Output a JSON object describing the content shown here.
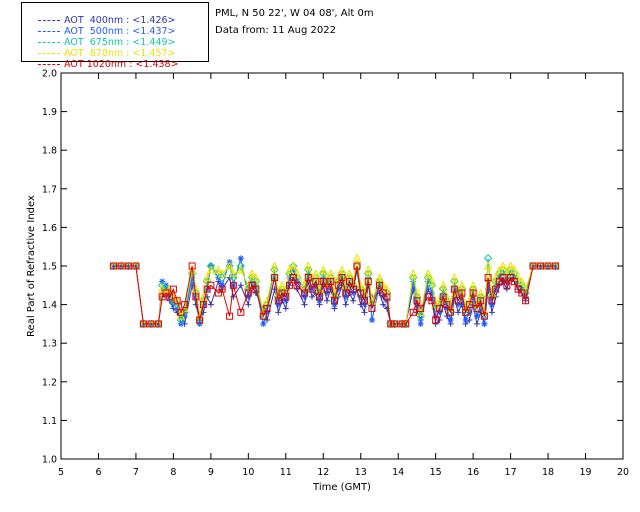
{
  "header": {
    "location": "PML, N 50 22', W 04 08', Alt 0m",
    "date": "Data from: 11 Aug 2022"
  },
  "legend": [
    {
      "label": "AOT  400nm : <1.426>",
      "color": "#3333aa"
    },
    {
      "label": "AOT  500nm : <1.437>",
      "color": "#1e5cff"
    },
    {
      "label": "AOT  675nm : <1.449>",
      "color": "#14c8a0"
    },
    {
      "label": "AOT  870nm : <1.457>",
      "color": "#f0e000"
    },
    {
      "label": "AOT 1020nm : <1.438>",
      "color": "#e00000"
    }
  ],
  "chart_data": {
    "type": "line",
    "xlabel": "Time (GMT)",
    "ylabel": "Real Part of Refractive Index",
    "xlim": [
      5,
      20
    ],
    "ylim": [
      1.0,
      2.0
    ],
    "xticks": [
      "5",
      "6",
      "7",
      "8",
      "9",
      "10",
      "11",
      "12",
      "13",
      "14",
      "15",
      "16",
      "17",
      "18",
      "19",
      "20"
    ],
    "yticks": [
      "1.0",
      "1.1",
      "1.2",
      "1.3",
      "1.4",
      "1.5",
      "1.6",
      "1.7",
      "1.8",
      "1.9",
      "2.0"
    ],
    "series": [
      {
        "name": "AOT  400nm",
        "color": "#3333aa",
        "marker": "plus",
        "x": [
          6.4,
          6.6,
          6.8,
          7.0,
          7.2,
          7.4,
          7.6,
          7.7,
          7.8,
          7.9,
          8.0,
          8.1,
          8.2,
          8.3,
          8.5,
          8.6,
          8.7,
          8.8,
          8.9,
          9.0,
          9.2,
          9.3,
          9.5,
          9.6,
          9.8,
          10.0,
          10.1,
          10.2,
          10.4,
          10.5,
          10.7,
          10.8,
          10.9,
          11.0,
          11.1,
          11.2,
          11.3,
          11.5,
          11.6,
          11.7,
          11.8,
          11.9,
          12.0,
          12.1,
          12.2,
          12.3,
          12.4,
          12.5,
          12.6,
          12.7,
          12.8,
          12.9,
          13.0,
          13.1,
          13.2,
          13.3,
          13.5,
          13.6,
          13.7,
          13.8,
          13.9,
          14.1,
          14.2,
          14.4,
          14.5,
          14.6,
          14.8,
          14.9,
          15.0,
          15.1,
          15.2,
          15.3,
          15.4,
          15.5,
          15.6,
          15.7,
          15.8,
          15.9,
          16.0,
          16.1,
          16.2,
          16.3,
          16.4,
          16.5,
          16.6,
          16.7,
          16.8,
          16.9,
          17.0,
          17.1,
          17.2,
          17.3,
          17.4,
          17.6,
          17.8,
          18.0,
          18.2
        ],
        "y": [
          1.5,
          1.5,
          1.5,
          1.5,
          1.35,
          1.35,
          1.35,
          1.42,
          1.44,
          1.41,
          1.39,
          1.38,
          1.37,
          1.35,
          1.45,
          1.4,
          1.36,
          1.38,
          1.42,
          1.4,
          1.46,
          1.44,
          1.47,
          1.42,
          1.45,
          1.4,
          1.45,
          1.43,
          1.39,
          1.36,
          1.44,
          1.38,
          1.41,
          1.39,
          1.45,
          1.47,
          1.44,
          1.4,
          1.46,
          1.42,
          1.43,
          1.4,
          1.45,
          1.41,
          1.44,
          1.39,
          1.42,
          1.45,
          1.4,
          1.43,
          1.41,
          1.44,
          1.4,
          1.38,
          1.45,
          1.42,
          1.43,
          1.4,
          1.39,
          1.35,
          1.35,
          1.35,
          1.35,
          1.44,
          1.38,
          1.36,
          1.44,
          1.41,
          1.35,
          1.36,
          1.4,
          1.37,
          1.35,
          1.42,
          1.38,
          1.4,
          1.35,
          1.36,
          1.4,
          1.35,
          1.38,
          1.35,
          1.44,
          1.38,
          1.42,
          1.45,
          1.46,
          1.44,
          1.47,
          1.46,
          1.44,
          1.43,
          1.41,
          1.5,
          1.5,
          1.5,
          1.5
        ]
      },
      {
        "name": "AOT  500nm",
        "color": "#1e5cff",
        "marker": "star",
        "x": [
          6.4,
          6.6,
          6.8,
          7.0,
          7.2,
          7.4,
          7.6,
          7.7,
          7.8,
          7.9,
          8.0,
          8.1,
          8.2,
          8.3,
          8.5,
          8.6,
          8.7,
          8.8,
          8.9,
          9.0,
          9.2,
          9.3,
          9.5,
          9.6,
          9.8,
          10.0,
          10.1,
          10.2,
          10.4,
          10.5,
          10.7,
          10.8,
          10.9,
          11.0,
          11.1,
          11.2,
          11.3,
          11.5,
          11.6,
          11.7,
          11.8,
          11.9,
          12.0,
          12.1,
          12.2,
          12.3,
          12.4,
          12.5,
          12.6,
          12.7,
          12.8,
          12.9,
          13.0,
          13.1,
          13.2,
          13.3,
          13.5,
          13.6,
          13.7,
          13.8,
          13.9,
          14.1,
          14.2,
          14.4,
          14.5,
          14.6,
          14.8,
          14.9,
          15.0,
          15.1,
          15.2,
          15.3,
          15.4,
          15.5,
          15.6,
          15.7,
          15.8,
          15.9,
          16.0,
          16.1,
          16.2,
          16.3,
          16.4,
          16.5,
          16.6,
          16.7,
          16.8,
          16.9,
          17.0,
          17.1,
          17.2,
          17.3,
          17.4,
          17.6,
          17.8,
          18.0,
          18.2
        ],
        "y": [
          1.5,
          1.5,
          1.5,
          1.5,
          1.35,
          1.35,
          1.35,
          1.46,
          1.45,
          1.42,
          1.4,
          1.39,
          1.35,
          1.37,
          1.47,
          1.42,
          1.35,
          1.4,
          1.44,
          1.5,
          1.47,
          1.45,
          1.51,
          1.45,
          1.52,
          1.42,
          1.46,
          1.45,
          1.35,
          1.38,
          1.47,
          1.4,
          1.43,
          1.41,
          1.47,
          1.49,
          1.46,
          1.42,
          1.48,
          1.44,
          1.45,
          1.41,
          1.47,
          1.43,
          1.46,
          1.4,
          1.44,
          1.47,
          1.42,
          1.45,
          1.43,
          1.49,
          1.42,
          1.4,
          1.47,
          1.36,
          1.45,
          1.42,
          1.41,
          1.35,
          1.35,
          1.35,
          1.35,
          1.46,
          1.4,
          1.35,
          1.46,
          1.43,
          1.37,
          1.38,
          1.42,
          1.39,
          1.36,
          1.44,
          1.4,
          1.42,
          1.36,
          1.38,
          1.42,
          1.37,
          1.4,
          1.35,
          1.46,
          1.4,
          1.44,
          1.47,
          1.48,
          1.46,
          1.48,
          1.47,
          1.45,
          1.44,
          1.42,
          1.5,
          1.5,
          1.5,
          1.5
        ]
      },
      {
        "name": "AOT  675nm",
        "color": "#14c8a0",
        "marker": "diamond",
        "x": [
          6.4,
          6.6,
          6.8,
          7.0,
          7.2,
          7.4,
          7.6,
          7.7,
          7.8,
          7.9,
          8.0,
          8.1,
          8.2,
          8.3,
          8.5,
          8.6,
          8.7,
          8.8,
          8.9,
          9.0,
          9.2,
          9.3,
          9.5,
          9.6,
          9.8,
          10.0,
          10.1,
          10.2,
          10.4,
          10.5,
          10.7,
          10.8,
          10.9,
          11.0,
          11.1,
          11.2,
          11.3,
          11.5,
          11.6,
          11.7,
          11.8,
          11.9,
          12.0,
          12.1,
          12.2,
          12.3,
          12.4,
          12.5,
          12.6,
          12.7,
          12.8,
          12.9,
          13.0,
          13.1,
          13.2,
          13.3,
          13.5,
          13.6,
          13.7,
          13.8,
          13.9,
          14.1,
          14.2,
          14.4,
          14.5,
          14.6,
          14.8,
          14.9,
          15.0,
          15.1,
          15.2,
          15.3,
          15.4,
          15.5,
          15.6,
          15.7,
          15.8,
          15.9,
          16.0,
          16.1,
          16.2,
          16.3,
          16.4,
          16.5,
          16.6,
          16.7,
          16.8,
          16.9,
          17.0,
          17.1,
          17.2,
          17.3,
          17.4,
          17.6,
          17.8,
          18.0,
          18.2
        ],
        "y": [
          1.5,
          1.5,
          1.5,
          1.5,
          1.35,
          1.35,
          1.35,
          1.45,
          1.44,
          1.43,
          1.41,
          1.4,
          1.36,
          1.38,
          1.48,
          1.43,
          1.36,
          1.41,
          1.46,
          1.5,
          1.48,
          1.47,
          1.5,
          1.47,
          1.5,
          1.44,
          1.47,
          1.46,
          1.37,
          1.4,
          1.49,
          1.42,
          1.44,
          1.43,
          1.48,
          1.5,
          1.47,
          1.44,
          1.49,
          1.46,
          1.47,
          1.43,
          1.48,
          1.45,
          1.47,
          1.42,
          1.46,
          1.48,
          1.44,
          1.47,
          1.45,
          1.5,
          1.44,
          1.42,
          1.48,
          1.4,
          1.46,
          1.44,
          1.43,
          1.35,
          1.35,
          1.35,
          1.35,
          1.47,
          1.42,
          1.37,
          1.47,
          1.45,
          1.39,
          1.4,
          1.44,
          1.41,
          1.38,
          1.46,
          1.42,
          1.44,
          1.38,
          1.4,
          1.44,
          1.39,
          1.42,
          1.37,
          1.52,
          1.42,
          1.46,
          1.48,
          1.49,
          1.47,
          1.49,
          1.48,
          1.46,
          1.45,
          1.43,
          1.5,
          1.5,
          1.5,
          1.5
        ]
      },
      {
        "name": "AOT  870nm",
        "color": "#f0e000",
        "marker": "triangle",
        "x": [
          6.4,
          6.6,
          6.8,
          7.0,
          7.2,
          7.4,
          7.6,
          7.7,
          7.8,
          7.9,
          8.0,
          8.1,
          8.2,
          8.3,
          8.5,
          8.6,
          8.7,
          8.8,
          8.9,
          9.0,
          9.2,
          9.3,
          9.5,
          9.6,
          9.8,
          10.0,
          10.1,
          10.2,
          10.4,
          10.5,
          10.7,
          10.8,
          10.9,
          11.0,
          11.1,
          11.2,
          11.3,
          11.5,
          11.6,
          11.7,
          11.8,
          11.9,
          12.0,
          12.1,
          12.2,
          12.3,
          12.4,
          12.5,
          12.6,
          12.7,
          12.8,
          12.9,
          13.0,
          13.1,
          13.2,
          13.3,
          13.5,
          13.6,
          13.7,
          13.8,
          13.9,
          14.1,
          14.2,
          14.4,
          14.5,
          14.6,
          14.8,
          14.9,
          15.0,
          15.1,
          15.2,
          15.3,
          15.4,
          15.5,
          15.6,
          15.7,
          15.8,
          15.9,
          16.0,
          16.1,
          16.2,
          16.3,
          16.4,
          16.5,
          16.6,
          16.7,
          16.8,
          16.9,
          17.0,
          17.1,
          17.2,
          17.3,
          17.4,
          17.6,
          17.8,
          18.0,
          18.2
        ],
        "y": [
          1.5,
          1.5,
          1.5,
          1.5,
          1.35,
          1.35,
          1.35,
          1.44,
          1.43,
          1.44,
          1.42,
          1.41,
          1.37,
          1.39,
          1.49,
          1.44,
          1.37,
          1.42,
          1.47,
          1.49,
          1.49,
          1.48,
          1.5,
          1.48,
          1.49,
          1.45,
          1.48,
          1.47,
          1.38,
          1.41,
          1.5,
          1.43,
          1.45,
          1.44,
          1.49,
          1.5,
          1.48,
          1.45,
          1.5,
          1.47,
          1.48,
          1.44,
          1.49,
          1.46,
          1.48,
          1.43,
          1.47,
          1.49,
          1.45,
          1.48,
          1.46,
          1.52,
          1.45,
          1.43,
          1.49,
          1.41,
          1.47,
          1.45,
          1.44,
          1.35,
          1.35,
          1.35,
          1.35,
          1.48,
          1.43,
          1.38,
          1.48,
          1.46,
          1.4,
          1.41,
          1.45,
          1.42,
          1.39,
          1.47,
          1.43,
          1.45,
          1.39,
          1.41,
          1.45,
          1.4,
          1.43,
          1.38,
          1.5,
          1.43,
          1.47,
          1.49,
          1.5,
          1.48,
          1.5,
          1.49,
          1.47,
          1.46,
          1.44,
          1.5,
          1.5,
          1.5,
          1.5
        ]
      },
      {
        "name": "AOT 1020nm",
        "color": "#e00000",
        "marker": "square",
        "x": [
          6.4,
          6.6,
          6.8,
          7.0,
          7.2,
          7.4,
          7.6,
          7.7,
          7.8,
          7.9,
          8.0,
          8.1,
          8.2,
          8.3,
          8.5,
          8.6,
          8.7,
          8.8,
          8.9,
          9.0,
          9.2,
          9.3,
          9.5,
          9.6,
          9.8,
          10.0,
          10.1,
          10.2,
          10.4,
          10.5,
          10.7,
          10.8,
          10.9,
          11.0,
          11.1,
          11.2,
          11.3,
          11.5,
          11.6,
          11.7,
          11.8,
          11.9,
          12.0,
          12.1,
          12.2,
          12.3,
          12.4,
          12.5,
          12.6,
          12.7,
          12.8,
          12.9,
          13.0,
          13.1,
          13.2,
          13.3,
          13.5,
          13.6,
          13.7,
          13.8,
          13.9,
          14.1,
          14.2,
          14.4,
          14.5,
          14.6,
          14.8,
          14.9,
          15.0,
          15.1,
          15.2,
          15.3,
          15.4,
          15.5,
          15.6,
          15.7,
          15.8,
          15.9,
          16.0,
          16.1,
          16.2,
          16.3,
          16.4,
          16.5,
          16.6,
          16.7,
          16.8,
          16.9,
          17.0,
          17.1,
          17.2,
          17.3,
          17.4,
          17.6,
          17.8,
          18.0,
          18.2
        ],
        "y": [
          1.5,
          1.5,
          1.5,
          1.5,
          1.35,
          1.35,
          1.35,
          1.42,
          1.43,
          1.42,
          1.44,
          1.41,
          1.38,
          1.4,
          1.5,
          1.42,
          1.36,
          1.4,
          1.44,
          1.45,
          1.43,
          1.44,
          1.37,
          1.45,
          1.38,
          1.43,
          1.45,
          1.44,
          1.37,
          1.39,
          1.47,
          1.41,
          1.43,
          1.42,
          1.45,
          1.47,
          1.45,
          1.43,
          1.47,
          1.44,
          1.46,
          1.42,
          1.46,
          1.44,
          1.46,
          1.41,
          1.45,
          1.47,
          1.43,
          1.46,
          1.44,
          1.5,
          1.43,
          1.41,
          1.46,
          1.39,
          1.45,
          1.43,
          1.42,
          1.35,
          1.35,
          1.35,
          1.35,
          1.38,
          1.41,
          1.39,
          1.42,
          1.41,
          1.36,
          1.39,
          1.42,
          1.4,
          1.38,
          1.44,
          1.41,
          1.43,
          1.38,
          1.4,
          1.43,
          1.39,
          1.41,
          1.37,
          1.47,
          1.41,
          1.44,
          1.46,
          1.47,
          1.45,
          1.47,
          1.46,
          1.44,
          1.43,
          1.41,
          1.5,
          1.5,
          1.5,
          1.5
        ]
      }
    ]
  }
}
